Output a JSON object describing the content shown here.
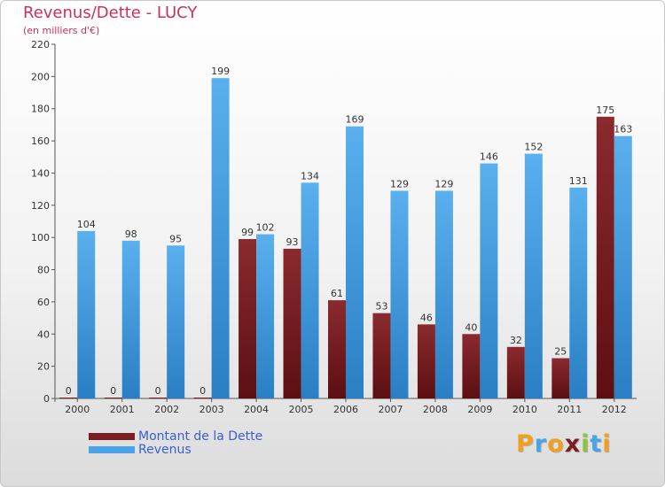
{
  "chart_data": {
    "type": "bar",
    "title": "Revenus/Dette - LUCY",
    "subtitle": "(en milliers d'€)",
    "xlabel": "",
    "ylabel": "",
    "ylim": [
      0,
      220
    ],
    "yticks": [
      0,
      20,
      40,
      60,
      80,
      100,
      120,
      140,
      160,
      180,
      200,
      220
    ],
    "grid": false,
    "categories": [
      "2000",
      "2001",
      "2002",
      "2003",
      "2004",
      "2005",
      "2006",
      "2007",
      "2008",
      "2009",
      "2010",
      "2011",
      "2012"
    ],
    "series": [
      {
        "name": "Montant de la Dette",
        "color": "#7a1e22",
        "values": [
          0,
          0,
          0,
          0,
          99,
          93,
          61,
          53,
          46,
          40,
          32,
          25,
          175
        ]
      },
      {
        "name": "Revenus",
        "color": "#4aa3e6",
        "values": [
          104,
          98,
          95,
          199,
          102,
          134,
          169,
          129,
          129,
          146,
          152,
          131,
          163
        ]
      }
    ],
    "legend_position": "bottom-left"
  },
  "legend": {
    "items": [
      {
        "label": "Montant de la Dette",
        "color": "#7a1e22"
      },
      {
        "label": "Revenus",
        "color": "#4aa3e6"
      }
    ]
  },
  "logo": {
    "letters": [
      "P",
      "r",
      "o",
      "x",
      "i",
      "t",
      "i"
    ],
    "colors": [
      "#f0a020",
      "#4aa3e6",
      "#f0a020",
      "#7a1e22",
      "#8cc63f",
      "#4aa3e6",
      "#f0a020"
    ]
  }
}
